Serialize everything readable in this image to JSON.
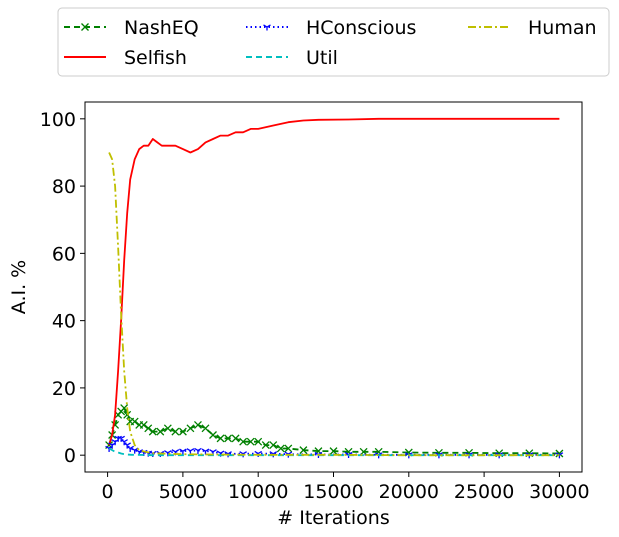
{
  "chart_data": {
    "type": "line",
    "title": "",
    "xlabel": "# Iterations",
    "ylabel": "A.I. %",
    "xlim": [
      -1500,
      31500
    ],
    "ylim": [
      -5,
      105
    ],
    "xticks": [
      0,
      5000,
      10000,
      15000,
      20000,
      25000,
      30000
    ],
    "yticks": [
      0,
      20,
      40,
      60,
      80,
      100
    ],
    "grid": false,
    "legend_position": "top, above plot, 3 columns",
    "series": [
      {
        "name": "NashEQ",
        "color": "#008000",
        "style": "dashed",
        "marker": "x",
        "x": [
          100,
          300,
          500,
          700,
          900,
          1100,
          1300,
          1500,
          1800,
          2100,
          2400,
          2700,
          3000,
          3500,
          4000,
          4500,
          5000,
          5500,
          6000,
          6500,
          7000,
          7500,
          8000,
          8500,
          9000,
          9500,
          10000,
          10500,
          11000,
          11500,
          12000,
          13000,
          14000,
          15000,
          16000,
          17000,
          18000,
          20000,
          22000,
          24000,
          26000,
          28000,
          30000
        ],
        "values": [
          3,
          6,
          9,
          12,
          13,
          14,
          12,
          10,
          10,
          9,
          9,
          8,
          7,
          7,
          8,
          7,
          7,
          8,
          9,
          8,
          6,
          5,
          5,
          5,
          4,
          4,
          4,
          3,
          3,
          2,
          2,
          1.5,
          1.2,
          1.2,
          1,
          1,
          1,
          0.8,
          0.7,
          0.7,
          0.6,
          0.6,
          0.5
        ]
      },
      {
        "name": "Selfish",
        "color": "#ff0000",
        "style": "solid",
        "marker": "",
        "x": [
          100,
          300,
          500,
          700,
          900,
          1100,
          1300,
          1500,
          1800,
          2100,
          2400,
          2700,
          3000,
          3300,
          3600,
          4000,
          4500,
          5000,
          5500,
          6000,
          6500,
          7000,
          7500,
          8000,
          8500,
          9000,
          9500,
          10000,
          11000,
          12000,
          13000,
          14000,
          16000,
          18000,
          20000,
          22000,
          24000,
          26000,
          28000,
          30000
        ],
        "values": [
          3,
          6,
          12,
          25,
          40,
          58,
          72,
          82,
          88,
          91,
          92,
          92,
          94,
          93,
          92,
          92,
          92,
          91,
          90,
          91,
          93,
          94,
          95,
          95,
          96,
          96,
          97,
          97,
          98,
          99,
          99.5,
          99.7,
          99.8,
          100,
          100,
          100,
          100,
          100,
          100,
          100
        ]
      },
      {
        "name": "HConscious",
        "color": "#0000ff",
        "style": "dotted",
        "marker": "tri_down",
        "x": [
          100,
          300,
          500,
          700,
          900,
          1100,
          1300,
          1500,
          1800,
          2100,
          2400,
          2700,
          3000,
          3500,
          4000,
          4500,
          5000,
          5500,
          6000,
          6500,
          7000,
          7500,
          8000,
          9000,
          10000,
          11000,
          12000,
          14000,
          16000,
          18000,
          20000,
          22000,
          24000,
          26000,
          28000,
          30000
        ],
        "values": [
          2,
          3,
          4,
          5,
          5,
          4,
          3,
          2,
          1.5,
          1,
          0.8,
          0.6,
          0.5,
          0.5,
          0.7,
          1,
          1.2,
          1.3,
          1.4,
          1.2,
          1,
          0.6,
          0.4,
          0.4,
          0.5,
          0.4,
          0.3,
          0.2,
          0.2,
          0.1,
          0.1,
          0.1,
          0.1,
          0.1,
          0.1,
          0.1
        ]
      },
      {
        "name": "Util",
        "color": "#00bfbf",
        "style": "dashed",
        "marker": "",
        "x": [
          100,
          300,
          500,
          700,
          900,
          1100,
          1300,
          1600,
          2000,
          3000,
          5000,
          10000,
          15000,
          20000,
          25000,
          30000
        ],
        "values": [
          2,
          1.5,
          1,
          0.8,
          0.5,
          0.3,
          0.2,
          0.1,
          0.1,
          0,
          0,
          0,
          0,
          0,
          0,
          0
        ]
      },
      {
        "name": "Human",
        "color": "#bfbf00",
        "style": "dashdot",
        "marker": "",
        "x": [
          100,
          300,
          500,
          700,
          900,
          1100,
          1300,
          1500,
          1800,
          2100,
          2500,
          3000,
          4000,
          5000,
          7000,
          10000,
          15000,
          20000,
          25000,
          30000
        ],
        "values": [
          90,
          88,
          80,
          62,
          42,
          25,
          14,
          7,
          3,
          1.5,
          1,
          0.6,
          0.4,
          0.3,
          0.2,
          0.1,
          0.1,
          0,
          0,
          0
        ]
      }
    ]
  }
}
